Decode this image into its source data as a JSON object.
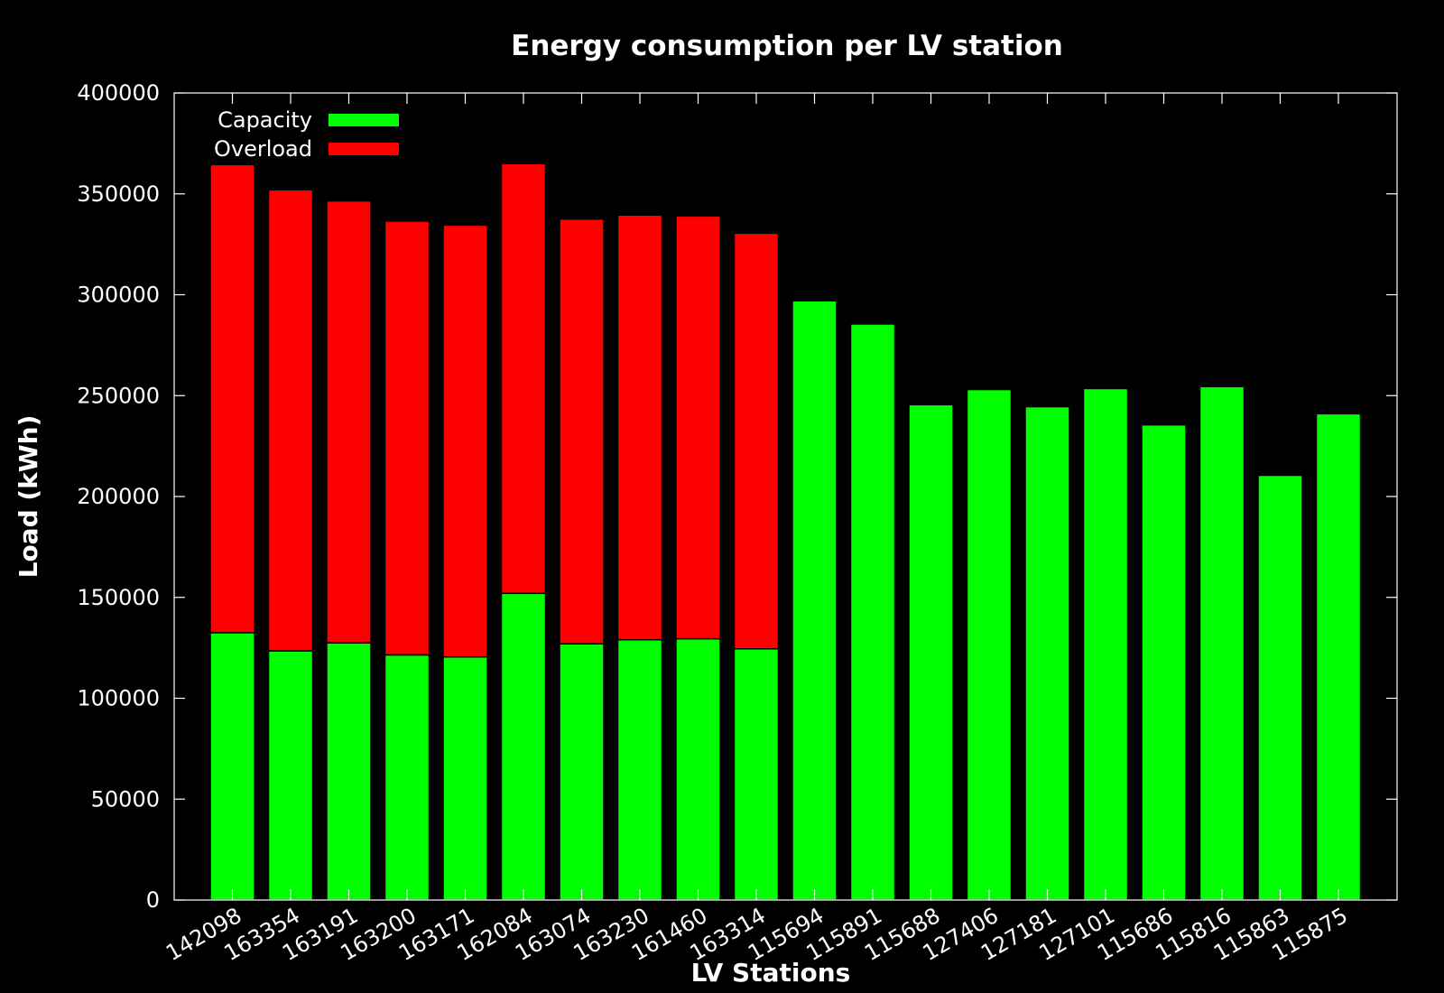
{
  "chart_data": {
    "type": "bar",
    "stacked": true,
    "title": "Energy consumption per LV station",
    "xlabel": "LV Stations",
    "ylabel": "Load (kWh)",
    "ylim": [
      0,
      400000
    ],
    "yticks": [
      0,
      50000,
      100000,
      150000,
      200000,
      250000,
      300000,
      350000,
      400000
    ],
    "grid": false,
    "legend_position": "top-left",
    "categories": [
      "142098",
      "163354",
      "163191",
      "163200",
      "163171",
      "162084",
      "163074",
      "163230",
      "161460",
      "163314",
      "115694",
      "115891",
      "115688",
      "127406",
      "127181",
      "127101",
      "115686",
      "115816",
      "115863",
      "115875"
    ],
    "series": [
      {
        "name": "Capacity",
        "color": "#00ff00",
        "values": [
          132500,
          123500,
          127500,
          121500,
          120500,
          152000,
          127000,
          129000,
          129500,
          124500,
          297000,
          285500,
          245500,
          253000,
          244500,
          253500,
          235500,
          254500,
          210500,
          241000
        ]
      },
      {
        "name": "Overload",
        "color": "#ff0000",
        "values": [
          232000,
          228500,
          219000,
          215000,
          214000,
          213000,
          210500,
          210500,
          209500,
          206000,
          0,
          0,
          0,
          0,
          0,
          0,
          0,
          0,
          0,
          0
        ]
      }
    ]
  }
}
